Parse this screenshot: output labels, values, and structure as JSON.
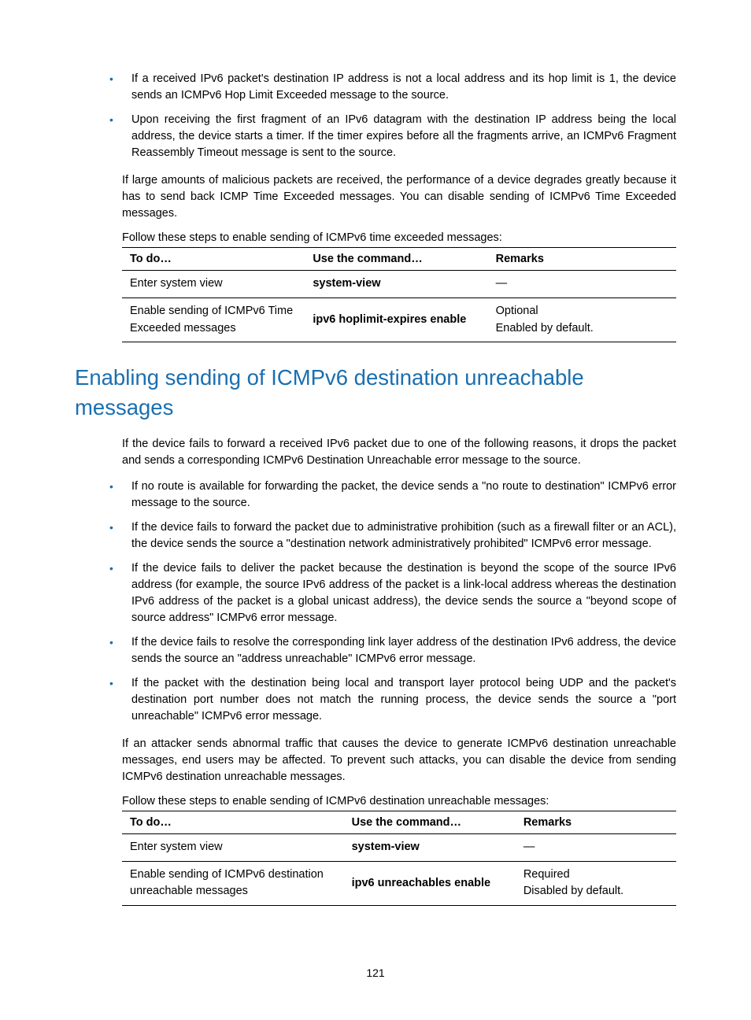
{
  "colors": {
    "accent": "#1a6fb0",
    "text": "#000000",
    "background": "#ffffff",
    "table_border": "#000000"
  },
  "typography": {
    "body_fontsize_pt": 11,
    "heading_fontsize_pt": 21,
    "heading_color": "#1a6fb0",
    "heading_weight": "normal",
    "font_family": "Arial"
  },
  "intro_bullets": [
    "If a received IPv6 packet's destination IP address is not a local address and its hop limit is 1, the device sends an ICMPv6 Hop Limit Exceeded message to the source.",
    "Upon receiving the first fragment of an IPv6 datagram with the destination IP address being the local address, the device starts a timer. If the timer expires before all the fragments arrive, an ICMPv6 Fragment Reassembly Timeout message is sent to the source."
  ],
  "para_after_intro": "If large amounts of malicious packets are received, the performance of a device degrades greatly because it has to send back ICMP Time Exceeded messages. You can disable sending of ICMPv6 Time Exceeded messages.",
  "table1": {
    "leadin": "Follow these steps to enable sending of ICMPv6 time exceeded messages:",
    "headers": [
      "To do…",
      "Use the command…",
      "Remarks"
    ],
    "col_widths": [
      "33%",
      "33%",
      "34%"
    ],
    "rows": [
      {
        "todo": "Enter system view",
        "cmd": "system-view",
        "remarks": "—"
      },
      {
        "todo": "Enable sending of ICMPv6 Time Exceeded messages",
        "cmd": "ipv6 hoplimit-expires enable",
        "remarks": "Optional\nEnabled by default."
      }
    ]
  },
  "heading": "Enabling sending of ICMPv6 destination unreachable messages",
  "section_intro": "If the device fails to forward a received IPv6 packet due to one of the following reasons, it drops the packet and sends a corresponding ICMPv6 Destination Unreachable error message to the source.",
  "section_bullets": [
    "If no route is available for forwarding the packet, the device sends a \"no route to destination\" ICMPv6 error message to the source.",
    "If the device fails to forward the packet due to administrative prohibition (such as a firewall filter or an ACL), the device sends the source a \"destination network administratively prohibited\" ICMPv6 error message.",
    "If the device fails to deliver the packet because the destination is beyond the scope of the source IPv6 address (for example, the source IPv6 address of the packet is a link-local address whereas the destination IPv6 address of the packet is a global unicast address), the device sends the source a \"beyond scope of source address\" ICMPv6 error message.",
    "If the device fails to resolve the corresponding link layer address of the destination IPv6 address, the device sends the source an \"address unreachable\" ICMPv6 error message.",
    "If the packet with the destination being local and transport layer protocol being UDP and the packet's destination port number does not match the running process, the device sends the source a \"port unreachable\" ICMPv6 error message."
  ],
  "para_after_section": "If an attacker sends abnormal traffic that causes the device to generate ICMPv6 destination unreachable messages, end users may be affected. To prevent such attacks, you can disable the device from sending ICMPv6 destination unreachable messages.",
  "table2": {
    "leadin": "Follow these steps to enable sending of ICMPv6 destination unreachable messages:",
    "headers": [
      "To do…",
      "Use the command…",
      "Remarks"
    ],
    "col_widths": [
      "40%",
      "31%",
      "29%"
    ],
    "rows": [
      {
        "todo": "Enter system view",
        "cmd": "system-view",
        "remarks": "—"
      },
      {
        "todo": "Enable sending of ICMPv6 destination unreachable messages",
        "cmd": "ipv6 unreachables enable",
        "remarks": "Required\nDisabled by default."
      }
    ]
  },
  "page_number": "121"
}
